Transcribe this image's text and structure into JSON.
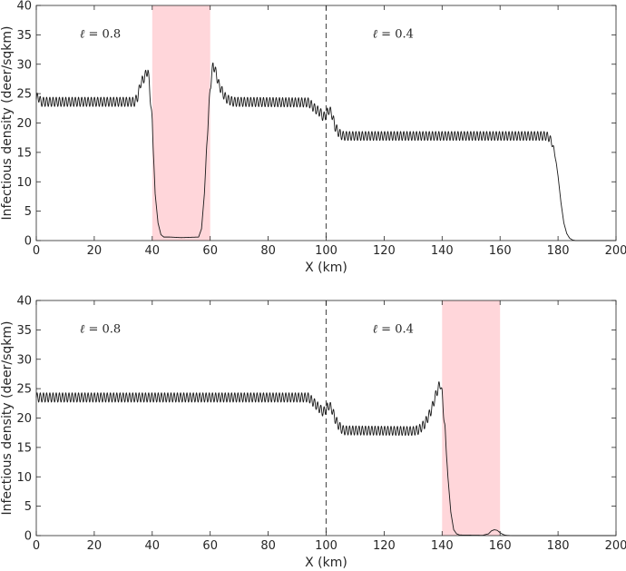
{
  "chart_data": [
    {
      "type": "line",
      "xlabel": "X (km)",
      "ylabel": "Infectious density (deer/sqkm)",
      "xlim": [
        0,
        200
      ],
      "ylim": [
        0,
        40
      ],
      "xticks": [
        0,
        20,
        40,
        60,
        80,
        100,
        120,
        140,
        160,
        180,
        200
      ],
      "yticks": [
        0,
        5,
        10,
        15,
        20,
        25,
        30,
        35,
        40
      ],
      "xtick_labels": [
        "0",
        "20",
        "40",
        "60",
        "80",
        "100",
        "120",
        "140",
        "160",
        "180",
        "200"
      ],
      "ytick_labels": [
        "0",
        "5",
        "10",
        "15",
        "20",
        "25",
        "30",
        "35",
        "40"
      ],
      "grid": false,
      "shaded_region": {
        "x": [
          40,
          60
        ],
        "color": "#ffd6da"
      },
      "vline": {
        "x": 100,
        "style": "dashed",
        "color": "#555555"
      },
      "annotations": [
        {
          "symbol": "ℓ",
          "text": " = 0.8",
          "x": 15,
          "y": 34.5
        },
        {
          "symbol": "ℓ",
          "text": " = 0.4",
          "x": 116,
          "y": 34.5
        }
      ],
      "line_color": "#1a1a1a",
      "series": [
        {
          "oscillation": {
            "period": 1.1,
            "amplitude": 0.8
          },
          "points": [
            [
              0,
              24
            ],
            [
              0.6,
              24.6
            ],
            [
              1.5,
              23.6
            ],
            [
              34,
              23.6
            ],
            [
              35,
              24.5
            ],
            [
              36,
              26.8
            ],
            [
              37,
              27.5
            ],
            [
              38,
              28.5
            ],
            [
              38.5,
              29
            ],
            [
              39,
              26.5
            ],
            [
              40,
              20
            ],
            [
              41,
              8
            ],
            [
              42,
              3
            ],
            [
              43,
              1
            ],
            [
              44,
              0.6
            ],
            [
              46,
              0.6
            ],
            [
              50,
              0.5
            ],
            [
              56,
              0.6
            ],
            [
              57,
              2
            ],
            [
              58,
              8
            ],
            [
              59,
              18
            ],
            [
              60,
              26
            ],
            [
              61,
              30
            ],
            [
              62,
              28.5
            ],
            [
              63,
              26.5
            ],
            [
              64,
              25.5
            ],
            [
              65,
              24.5
            ],
            [
              66,
              24
            ],
            [
              68,
              23.6
            ],
            [
              94,
              23.5
            ],
            [
              95,
              23
            ],
            [
              96,
              22.5
            ],
            [
              98,
              21.8
            ],
            [
              99,
              21
            ],
            [
              100,
              21.4
            ],
            [
              101,
              22.3
            ],
            [
              102,
              21.5
            ],
            [
              103,
              19.5
            ],
            [
              104,
              18.6
            ],
            [
              105,
              18
            ],
            [
              106,
              17.8
            ],
            [
              176,
              17.8
            ],
            [
              177,
              17.5
            ],
            [
              178,
              16.5
            ],
            [
              179,
              14.5
            ],
            [
              180,
              11
            ],
            [
              181,
              6.5
            ],
            [
              182,
              3
            ],
            [
              183,
              1.2
            ],
            [
              184,
              0.4
            ],
            [
              185,
              0.1
            ],
            [
              186,
              0
            ],
            [
              200,
              0
            ]
          ]
        }
      ]
    },
    {
      "type": "line",
      "xlabel": "X (km)",
      "ylabel": "Infectious density (deer/sqkm)",
      "xlim": [
        0,
        200
      ],
      "ylim": [
        0,
        40
      ],
      "xticks": [
        0,
        20,
        40,
        60,
        80,
        100,
        120,
        140,
        160,
        180,
        200
      ],
      "yticks": [
        0,
        5,
        10,
        15,
        20,
        25,
        30,
        35,
        40
      ],
      "xtick_labels": [
        "0",
        "20",
        "40",
        "60",
        "80",
        "100",
        "120",
        "140",
        "160",
        "180",
        "200"
      ],
      "ytick_labels": [
        "0",
        "5",
        "10",
        "15",
        "20",
        "25",
        "30",
        "35",
        "40"
      ],
      "grid": false,
      "shaded_region": {
        "x": [
          140,
          160
        ],
        "color": "#ffd6da"
      },
      "vline": {
        "x": 100,
        "style": "dashed",
        "color": "#555555"
      },
      "annotations": [
        {
          "symbol": "ℓ",
          "text": " = 0.8",
          "x": 15,
          "y": 34.5
        },
        {
          "symbol": "ℓ",
          "text": " = 0.4",
          "x": 116,
          "y": 34.5
        }
      ],
      "line_color": "#1a1a1a",
      "series": [
        {
          "oscillation": {
            "period": 1.1,
            "amplitude": 0.8
          },
          "points": [
            [
              0,
              23.5
            ],
            [
              94,
              23.5
            ],
            [
              95,
              23
            ],
            [
              96,
              22.5
            ],
            [
              98,
              21.5
            ],
            [
              99,
              21
            ],
            [
              100,
              21.5
            ],
            [
              101,
              22.2
            ],
            [
              102,
              21.5
            ],
            [
              103,
              20
            ],
            [
              104,
              19
            ],
            [
              105,
              18.3
            ],
            [
              106,
              17.9
            ],
            [
              130,
              17.8
            ],
            [
              132,
              18
            ],
            [
              134,
              19
            ],
            [
              136,
              21
            ],
            [
              137,
              22.5
            ],
            [
              138,
              24.2
            ],
            [
              139,
              25.5
            ],
            [
              139.5,
              25.8
            ],
            [
              140,
              24
            ],
            [
              141,
              18
            ],
            [
              142,
              10
            ],
            [
              143,
              4
            ],
            [
              144,
              1
            ],
            [
              145,
              0.3
            ],
            [
              146,
              0.1
            ],
            [
              154,
              0.05
            ],
            [
              156,
              0.3
            ],
            [
              157,
              0.8
            ],
            [
              158,
              1
            ],
            [
              159,
              0.9
            ],
            [
              160,
              0.5
            ],
            [
              161,
              0.2
            ],
            [
              162,
              0.05
            ],
            [
              164,
              0
            ],
            [
              200,
              0
            ]
          ]
        }
      ]
    }
  ]
}
